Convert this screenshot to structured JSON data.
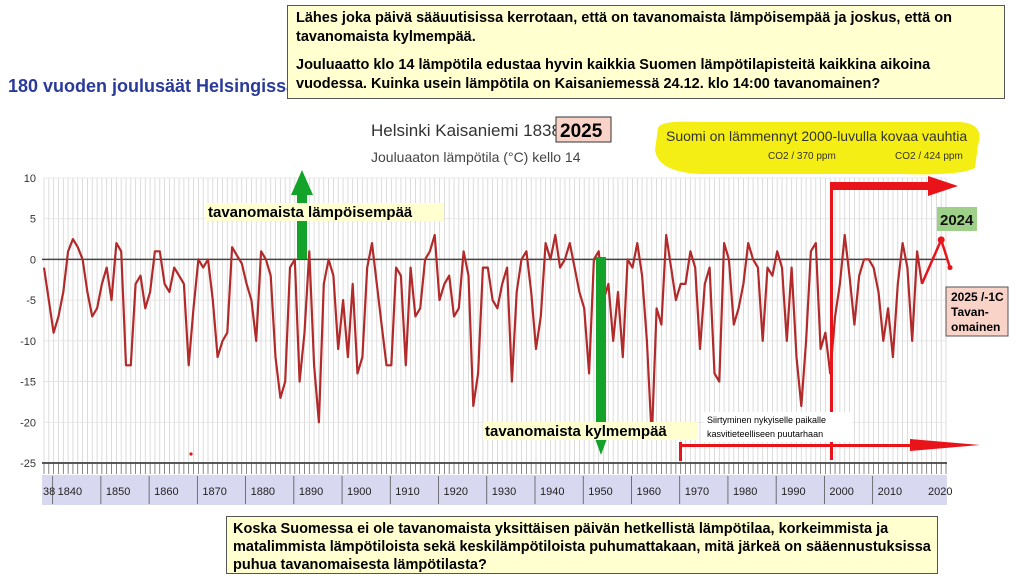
{
  "side_title": "180 vuoden joulusäät Helsingissä",
  "top_box": {
    "line1": "Lähes joka päivä sääuutisissa kerrotaan, että on tavanomaista lämpöisempää ja joskus, että on tavanomaista kylmempää.",
    "line2": "Jouluaatto klo 14 lämpötila edustaa hyvin kaikkia Suomen lämpötilapisteitä kaikkina aikoina vuodessa. Kuinka usein lämpötila on Kaisaniemessä 24.12. klo 14:00 tavanomainen?"
  },
  "bottom_box": {
    "text": "Koska Suomessa ei ole tavanomaista yksittäisen päivän hetkellistä lämpötilaa, korkeimmista ja matalimmista lämpötiloista sekä keskilämpötiloista puhumattakaan, mitä järkeä on sääennustuksissa puhua tavanomaisesta lämpötilasta?"
  },
  "chart_data": {
    "type": "line",
    "title_prefix": "Helsinki Kaisaniemi 1838-",
    "title_year": "2025",
    "subtitle": "Jouluaaton lämpötila (°C) kello 14",
    "ylim": [
      -25,
      10
    ],
    "yticks": [
      10,
      5,
      0,
      -5,
      -10,
      -15,
      -20,
      -25
    ],
    "xlim": [
      1838,
      2025
    ],
    "xticks": [
      1840,
      1850,
      1860,
      1870,
      1880,
      1890,
      1900,
      1910,
      1920,
      1930,
      1940,
      1950,
      1960,
      1970,
      1980,
      1990,
      2000,
      2010
    ],
    "xtick_edge_left": "38",
    "xtick_edge_right": "2020",
    "series": [
      {
        "values": [
          -1,
          -5,
          -9,
          -7,
          -4,
          1,
          2.5,
          1.5,
          0,
          -4,
          -7,
          -6,
          -3,
          -1,
          -5,
          2,
          1,
          -13,
          -13,
          -3,
          -2,
          -6,
          -4,
          1,
          1,
          -3,
          -4,
          -1,
          -2,
          -3,
          -13,
          -6,
          0,
          -1,
          0,
          -5,
          -12,
          -10,
          -9,
          1.5,
          0.5,
          -0.5,
          -3,
          -5,
          -10,
          1,
          0,
          -2,
          -12,
          -17,
          -15,
          -1,
          0,
          -15,
          -9,
          1,
          -13,
          -20,
          -3,
          0,
          -2,
          -11,
          -5,
          -12,
          -3,
          -14,
          -12,
          -1,
          2,
          -3,
          -8,
          -13,
          -13,
          -1,
          -2,
          -13,
          -1,
          -7,
          -6,
          0,
          1,
          3,
          -5,
          -3,
          -2,
          -7,
          -6,
          1,
          -2,
          -18,
          -14,
          -1,
          -1,
          -5,
          -6,
          -3,
          -1,
          -15,
          -4,
          0,
          1,
          -4,
          -11,
          -7,
          2,
          0,
          3,
          -1,
          0,
          2,
          -1,
          -4,
          -6,
          -14,
          0,
          1,
          -5,
          -3,
          -10,
          -4,
          -12,
          0,
          -1,
          2,
          -2,
          -10,
          -22,
          -6,
          -8,
          3,
          -1,
          -5,
          -3,
          -3,
          1,
          -1,
          -11,
          -3,
          -1,
          -14,
          -15,
          2,
          0,
          -8,
          -6,
          -3,
          2,
          0,
          -1,
          -10,
          -1,
          -2,
          1,
          -1,
          -10,
          -1,
          -12,
          -18,
          -10,
          1,
          2,
          -11,
          -9,
          -14,
          -7,
          -3,
          3,
          -2,
          -8,
          -2,
          0,
          0,
          -1,
          -4,
          -10,
          -6,
          -12,
          -3,
          2,
          -1,
          -10,
          1,
          -3
        ],
        "color": "#b22a2a"
      }
    ],
    "value_2024": 2.4,
    "value_2025": -1,
    "annotations": {
      "warm_label": "tavanomaista lämpöisempää",
      "cold_label": "tavanomaista kylmempää",
      "warming_label": "Suomi on lämmennyt 2000-luvulla kovaa vauhtia",
      "co2_left": "CO2 / 370 ppm",
      "co2_right": "CO2 / 424 ppm",
      "year_badge": "2024",
      "move_line1": "Siirtyminen nykyiselle paikalle",
      "move_line2": "kasvitieteelliseen puutarhaan",
      "note_line1": "2025 /-1C",
      "note_line2": "Tavan-",
      "note_line3": "omainen",
      "move_year": 1965,
      "change_year": 1996
    },
    "colors": {
      "line": "#b22a2a",
      "arrow_green": "#14a32a",
      "arrow_red": "#e8141a",
      "highlight_yellow": "#f5ee14",
      "badge_green": "#9fd08a",
      "badge_pink": "#f9d3c8",
      "axis_band": "#d8d8f0"
    }
  }
}
